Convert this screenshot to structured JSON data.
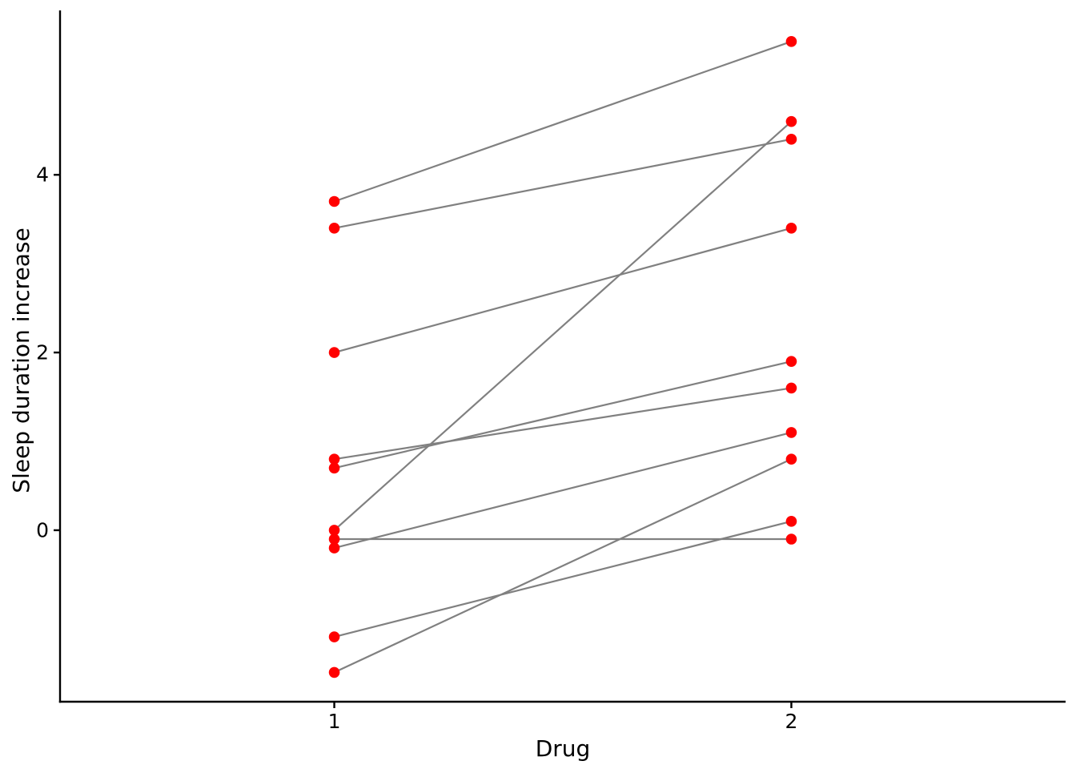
{
  "figure": {
    "background": "#ffffff"
  },
  "chart_data": {
    "type": "paired-line",
    "title": "",
    "xlabel": "Drug",
    "ylabel": "Sleep duration increase",
    "x_values": [
      1,
      2
    ],
    "pairs": [
      [
        0.7,
        1.9
      ],
      [
        -1.6,
        0.8
      ],
      [
        -0.2,
        1.1
      ],
      [
        -1.2,
        0.1
      ],
      [
        -0.1,
        -0.1
      ],
      [
        3.4,
        4.4
      ],
      [
        3.7,
        5.5
      ],
      [
        0.8,
        1.6
      ],
      [
        0.0,
        4.6
      ],
      [
        2.0,
        3.4
      ]
    ],
    "xticks": [
      1,
      2
    ],
    "xtick_labels": [
      "1",
      "2"
    ],
    "yticks": [
      0,
      2,
      4
    ],
    "ytick_labels": [
      "0",
      "2",
      "4"
    ],
    "xlim": [
      0.4,
      2.6
    ],
    "ylim": [
      -1.93,
      5.85
    ],
    "grid": false,
    "legend": false,
    "point_color": "#ff0000",
    "line_color": "#808080",
    "axis_color": "#000000",
    "text_color": "#000000"
  }
}
